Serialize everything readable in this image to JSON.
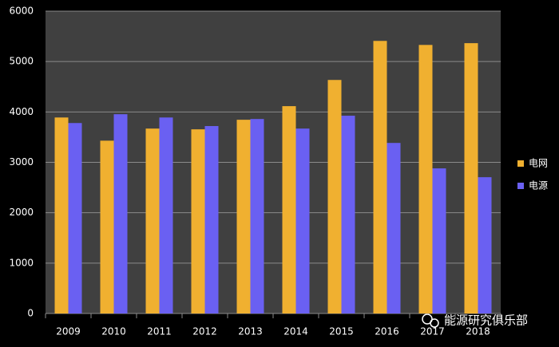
{
  "chart_data": {
    "type": "bar",
    "categories": [
      "2009",
      "2010",
      "2011",
      "2012",
      "2013",
      "2014",
      "2015",
      "2016",
      "2017",
      "2018"
    ],
    "series": [
      {
        "name": "电网",
        "color": "#f0b030",
        "values": [
          3890,
          3430,
          3670,
          3655,
          3845,
          4115,
          4635,
          5410,
          5330,
          5365
        ]
      },
      {
        "name": "电源",
        "color": "#6a60f2",
        "values": [
          3780,
          3955,
          3890,
          3720,
          3860,
          3670,
          3925,
          3385,
          2880,
          2705
        ]
      }
    ],
    "ylim": [
      0,
      6000
    ],
    "yticks": [
      0,
      1000,
      2000,
      3000,
      4000,
      5000,
      6000
    ],
    "grid": true,
    "legend": "right",
    "watermark": "能源研究俱乐部"
  }
}
